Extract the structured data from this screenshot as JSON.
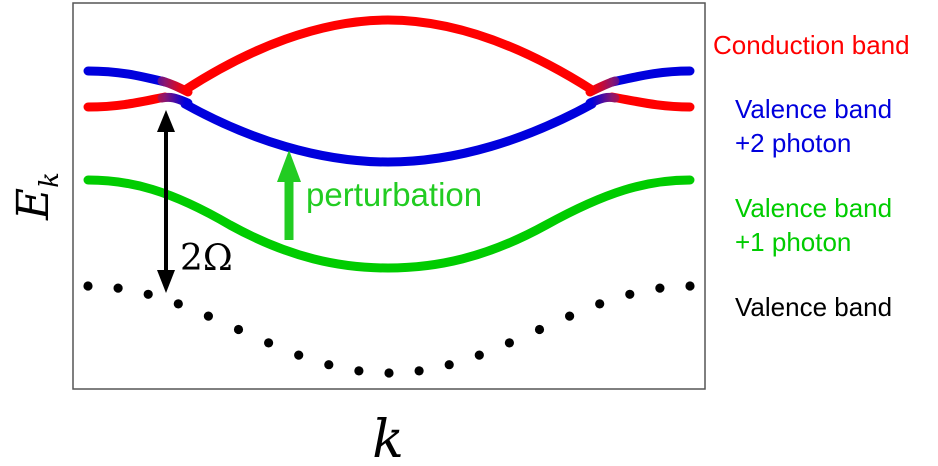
{
  "axes": {
    "y_label_main": "E",
    "y_label_sub": "k",
    "x_label": "k"
  },
  "annotations": {
    "perturbation": "perturbation",
    "gap_label": "2Ω"
  },
  "legend": {
    "conduction": "Conduction band",
    "valence_2_line1": "Valence band",
    "valence_2_line2": "+2 photon",
    "valence_1_line1": "Valence band",
    "valence_1_line2": "+1 photon",
    "valence": "Valence band"
  },
  "colors": {
    "conduction": "#ff0000",
    "valence_plus2": "#0000dd",
    "valence_plus1": "#00cc00",
    "valence": "#000000",
    "perturbation": "#22cc22",
    "frame": "#555555"
  }
}
